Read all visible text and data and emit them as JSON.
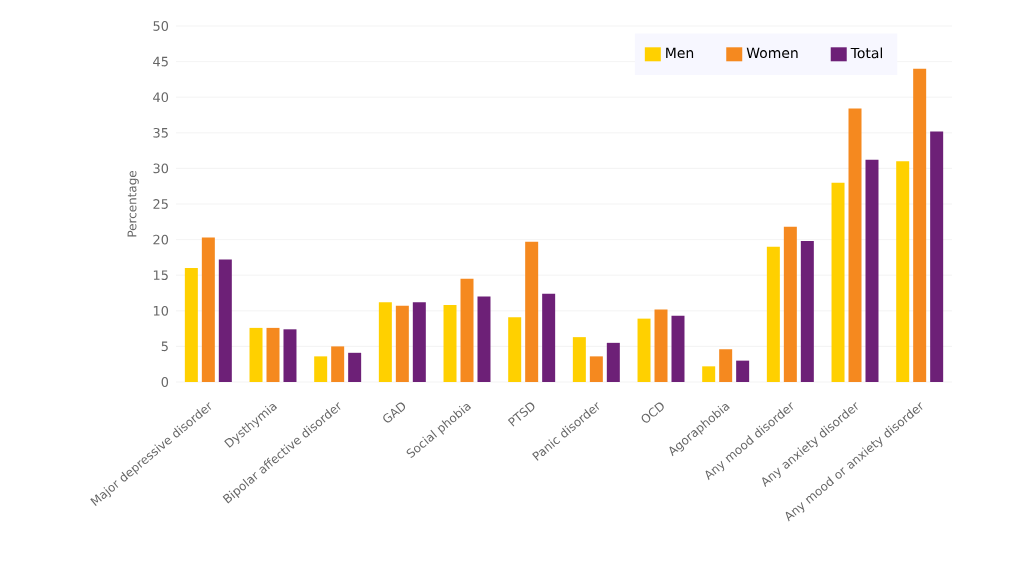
{
  "chart_data": {
    "type": "bar",
    "ylabel": "Percentage",
    "categories": [
      "Major depressive disorder",
      "Dysthymia",
      "Bipolar affective disorder",
      "GAD",
      "Social phobia",
      "PTSD",
      "Panic disorder",
      "OCD",
      "Agoraphobia",
      "Any mood disorder",
      "Any anxiety disorder",
      "Any mood or anxiety disorder"
    ],
    "series": [
      {
        "name": "Men",
        "color": "#ffd000",
        "values": [
          16,
          7.6,
          3.6,
          11.2,
          10.8,
          9.1,
          6.3,
          8.9,
          2.2,
          19,
          28,
          31
        ]
      },
      {
        "name": "Women",
        "color": "#f5891f",
        "values": [
          20.3,
          7.6,
          5,
          10.7,
          14.5,
          19.7,
          3.6,
          10.2,
          4.6,
          21.8,
          38.4,
          44
        ]
      },
      {
        "name": "Total",
        "color": "#6d2077",
        "values": [
          17.2,
          7.4,
          4.1,
          11.2,
          12,
          12.4,
          5.5,
          9.3,
          3,
          19.8,
          31.2,
          35.2
        ]
      }
    ],
    "ylim": [
      0,
      50
    ],
    "yticks": [
      0,
      5,
      10,
      15,
      20,
      25,
      30,
      35,
      40,
      45,
      50
    ],
    "grid": "y",
    "legend": "top right"
  }
}
